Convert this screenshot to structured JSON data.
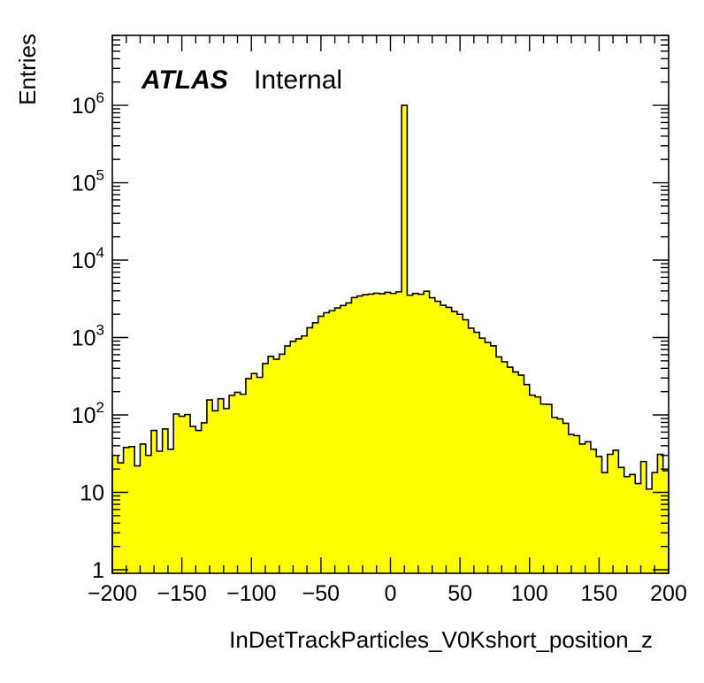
{
  "chart_data": {
    "type": "histogram",
    "xlabel": "InDetTrackParticles_V0Kshort_position_z",
    "ylabel": "Entries",
    "xlim": [
      -200,
      200
    ],
    "ylim": [
      0.9,
      8000000
    ],
    "yscale": "log",
    "bin_width": 4,
    "grid": false,
    "legend": "none",
    "fill_color": "#ffff00",
    "line_color": "#000000",
    "annotation": {
      "bold": "ATLAS",
      "text": "Internal"
    },
    "x_ticks": [
      {
        "value": -200,
        "label": "−200"
      },
      {
        "value": -150,
        "label": "−150"
      },
      {
        "value": -100,
        "label": "−100"
      },
      {
        "value": -50,
        "label": "−50"
      },
      {
        "value": 0,
        "label": "0"
      },
      {
        "value": 50,
        "label": "50"
      },
      {
        "value": 100,
        "label": "100"
      },
      {
        "value": 150,
        "label": "150"
      },
      {
        "value": 200,
        "label": "200"
      }
    ],
    "y_ticks": [
      {
        "value": 1,
        "base": "1",
        "exp": ""
      },
      {
        "value": 10,
        "base": "10",
        "exp": ""
      },
      {
        "value": 100,
        "base": "10",
        "exp": "2"
      },
      {
        "value": 1000,
        "base": "10",
        "exp": "3"
      },
      {
        "value": 10000,
        "base": "10",
        "exp": "4"
      },
      {
        "value": 100000,
        "base": "10",
        "exp": "5"
      },
      {
        "value": 1000000,
        "base": "10",
        "exp": "6"
      }
    ],
    "values": [
      30,
      24,
      38,
      39,
      22,
      42,
      30,
      63,
      34,
      66,
      36,
      103,
      96,
      101,
      71,
      63,
      79,
      156,
      113,
      162,
      121,
      179,
      196,
      185,
      295,
      343,
      306,
      461,
      573,
      524,
      610,
      778,
      892,
      964,
      1047,
      1337,
      1553,
      1885,
      2090,
      2225,
      2414,
      2592,
      2799,
      3286,
      3443,
      3578,
      3642,
      3734,
      3670,
      3839,
      3717,
      3892,
      1000000,
      3525,
      3708,
      3626,
      3966,
      3262,
      2939,
      2609,
      2452,
      2170,
      1996,
      1694,
      1322,
      1170,
      982,
      865,
      781,
      562,
      486,
      414,
      359,
      326,
      247,
      180,
      171,
      138,
      137,
      93,
      89,
      78,
      56,
      54,
      42,
      45,
      36,
      29,
      18,
      31,
      35,
      21,
      16,
      17,
      13,
      25,
      11,
      18,
      31,
      19
    ]
  }
}
